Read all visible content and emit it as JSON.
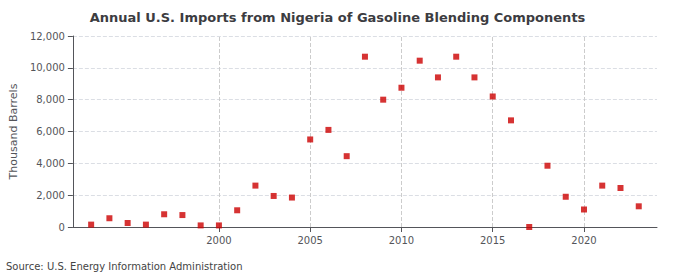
{
  "chart_data": {
    "type": "scatter",
    "title": "Annual U.S. Imports from Nigeria of Gasoline Blending Components",
    "ylabel": "Thousand Barrels",
    "annotations": [
      "Source: U.S. Energy Information Administration"
    ],
    "x": [
      1993,
      1994,
      1995,
      1996,
      1997,
      1998,
      1999,
      2000,
      2001,
      2002,
      2003,
      2004,
      2005,
      2006,
      2007,
      2008,
      2009,
      2010,
      2011,
      2012,
      2013,
      2014,
      2015,
      2016,
      2017,
      2018,
      2019,
      2020,
      2021,
      2022,
      2023
    ],
    "values": [
      150,
      550,
      250,
      150,
      800,
      750,
      100,
      100,
      1050,
      2600,
      1950,
      1850,
      5500,
      6100,
      4450,
      10700,
      8000,
      8750,
      10450,
      9400,
      10700,
      9400,
      8200,
      6700,
      0,
      3850,
      1900,
      1100,
      2600,
      2450,
      1300
    ],
    "color": "#cc0000",
    "marker": "square",
    "xlim": [
      1992,
      2024
    ],
    "xticks": [
      2000,
      2005,
      2010,
      2015,
      2020
    ],
    "ylim": [
      0,
      12000
    ],
    "yticks": [
      0,
      {
        "value": 2000,
        "label": "2,000"
      },
      {
        "value": 4000,
        "label": "4,000"
      },
      {
        "value": 6000,
        "label": "6,000"
      },
      {
        "value": 8000,
        "label": "8,000"
      },
      {
        "value": 10000,
        "label": "10,000"
      },
      {
        "value": 12000,
        "label": "12,000"
      }
    ],
    "grid": true
  }
}
